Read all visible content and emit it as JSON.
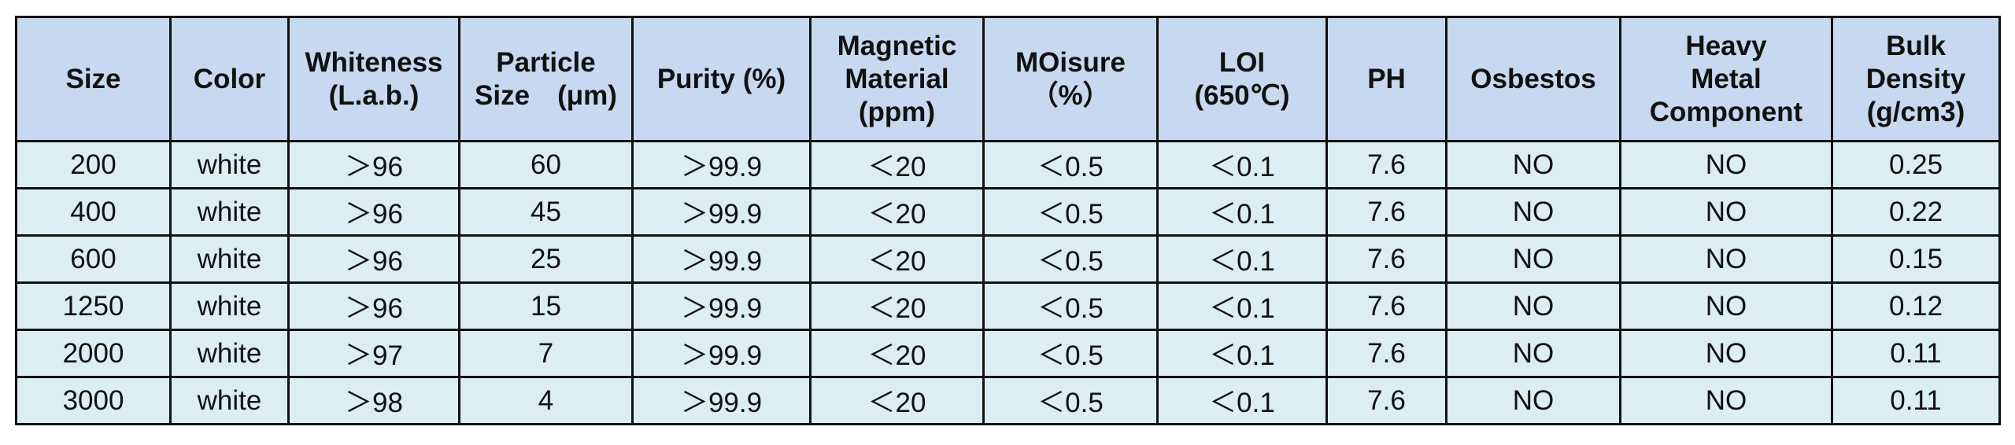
{
  "table": {
    "header": [
      "Size",
      "Color",
      "Whiteness\n(L.a.b.)",
      "Particle\nSize　(μm)",
      "Purity (%)",
      "Magnetic\nMaterial\n(ppm)",
      "MOisure\n（%）",
      "LOI\n(650℃)",
      "PH",
      "Osbestos",
      "Heavy\nMetal\nComponent",
      "Bulk\nDensity\n(g/cm3)"
    ],
    "rows": [
      [
        "200",
        "white",
        "＞96",
        "60",
        "＞99.9",
        "＜20",
        "＜0.5",
        "＜0.1",
        "7.6",
        "NO",
        "NO",
        "0.25"
      ],
      [
        "400",
        "white",
        "＞96",
        "45",
        "＞99.9",
        "＜20",
        "＜0.5",
        "＜0.1",
        "7.6",
        "NO",
        "NO",
        "0.22"
      ],
      [
        "600",
        "white",
        "＞96",
        "25",
        "＞99.9",
        "＜20",
        "＜0.5",
        "＜0.1",
        "7.6",
        "NO",
        "NO",
        "0.15"
      ],
      [
        "1250",
        "white",
        "＞96",
        "15",
        "＞99.9",
        "＜20",
        "＜0.5",
        "＜0.1",
        "7.6",
        "NO",
        "NO",
        "0.12"
      ],
      [
        "2000",
        "white",
        "＞97",
        "7",
        "＞99.9",
        "＜20",
        "＜0.5",
        "＜0.1",
        "7.6",
        "NO",
        "NO",
        "0.11"
      ],
      [
        "3000",
        "white",
        "＞98",
        "4",
        "＞99.9",
        "＜20",
        "＜0.5",
        "＜0.1",
        "7.6",
        "NO",
        "NO",
        "0.11"
      ]
    ]
  }
}
